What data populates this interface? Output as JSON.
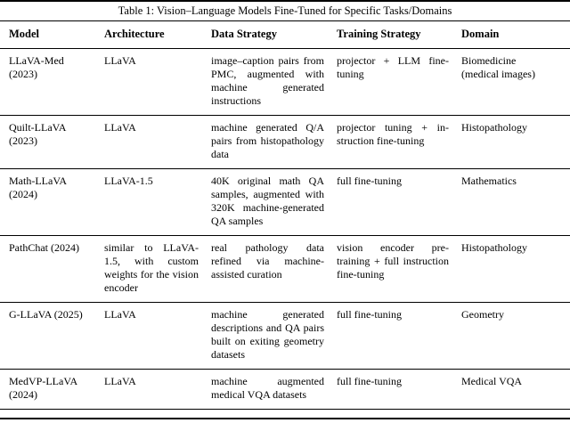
{
  "caption": "Table 1: Vision–Language Models Fine-Tuned for Specific Tasks/Domains",
  "table": {
    "headers": [
      "Model",
      "Architecture",
      "Data Strategy",
      "Training Strategy",
      "Domain"
    ],
    "rows": [
      {
        "model": "LLaVA-Med (2023)",
        "architecture": "LLaVA",
        "data_strategy": "image–caption pairs from PMC, aug­mented with machine generated instruc­tions",
        "training_strategy": "projector + LLM fine-tuning",
        "domain": "Biomedicine (medical images)"
      },
      {
        "model": "Quilt-LLaVA (2023)",
        "architecture": "LLaVA",
        "data_strategy": "machine generated Q/A pairs from histopathology data",
        "training_strategy": "projector tuning + in­struction fine-tuning",
        "domain": "Histopathology"
      },
      {
        "model": "Math-LLaVA (2024)",
        "architecture": "LLaVA-1.5",
        "data_strategy": "40K original math QA samples, aug­mented with 320K machine-generated QA samples",
        "training_strategy": "full fine-tuning",
        "domain": "Mathematics"
      },
      {
        "model": "PathChat (2024)",
        "architecture": "similar to LLaVA-1.5, with custom weights for the vi­sion encoder",
        "data_strategy": "real pathology data refined via machine-assisted curation",
        "training_strategy": "vision encoder pre-training + full instruc­tion fine-tuning",
        "domain": "Histopathology"
      },
      {
        "model": "G-LLaVA (2025)",
        "architecture": "LLaVA",
        "data_strategy": "machine generated descriptions and QA pairs built on exiting geometry datasets",
        "training_strategy": "full fine-tuning",
        "domain": "Geometry"
      },
      {
        "model": "MedVP-LLaVA (2024)",
        "architecture": "LLaVA",
        "data_strategy": "machine augmented medical VQA datasets",
        "training_strategy": "full fine-tuning",
        "domain": "Medical VQA"
      }
    ]
  }
}
